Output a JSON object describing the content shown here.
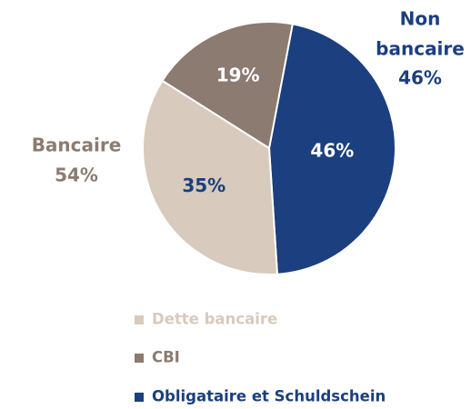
{
  "chart_data": {
    "type": "pie",
    "categories": [
      "Dette bancaire",
      "CBI",
      "Obligataire et Schuldschein"
    ],
    "values": [
      35,
      19,
      46
    ],
    "value_labels": [
      "35%",
      "19%",
      "46%"
    ],
    "colors": [
      "#d8cabc",
      "#8b7b70",
      "#1b3f7f"
    ],
    "annotations": [
      {
        "lines": [
          "Non",
          "bancaire",
          "46%"
        ]
      },
      {
        "lines": [
          "Bancaire",
          "54%"
        ]
      }
    ],
    "legend": "bottom"
  }
}
